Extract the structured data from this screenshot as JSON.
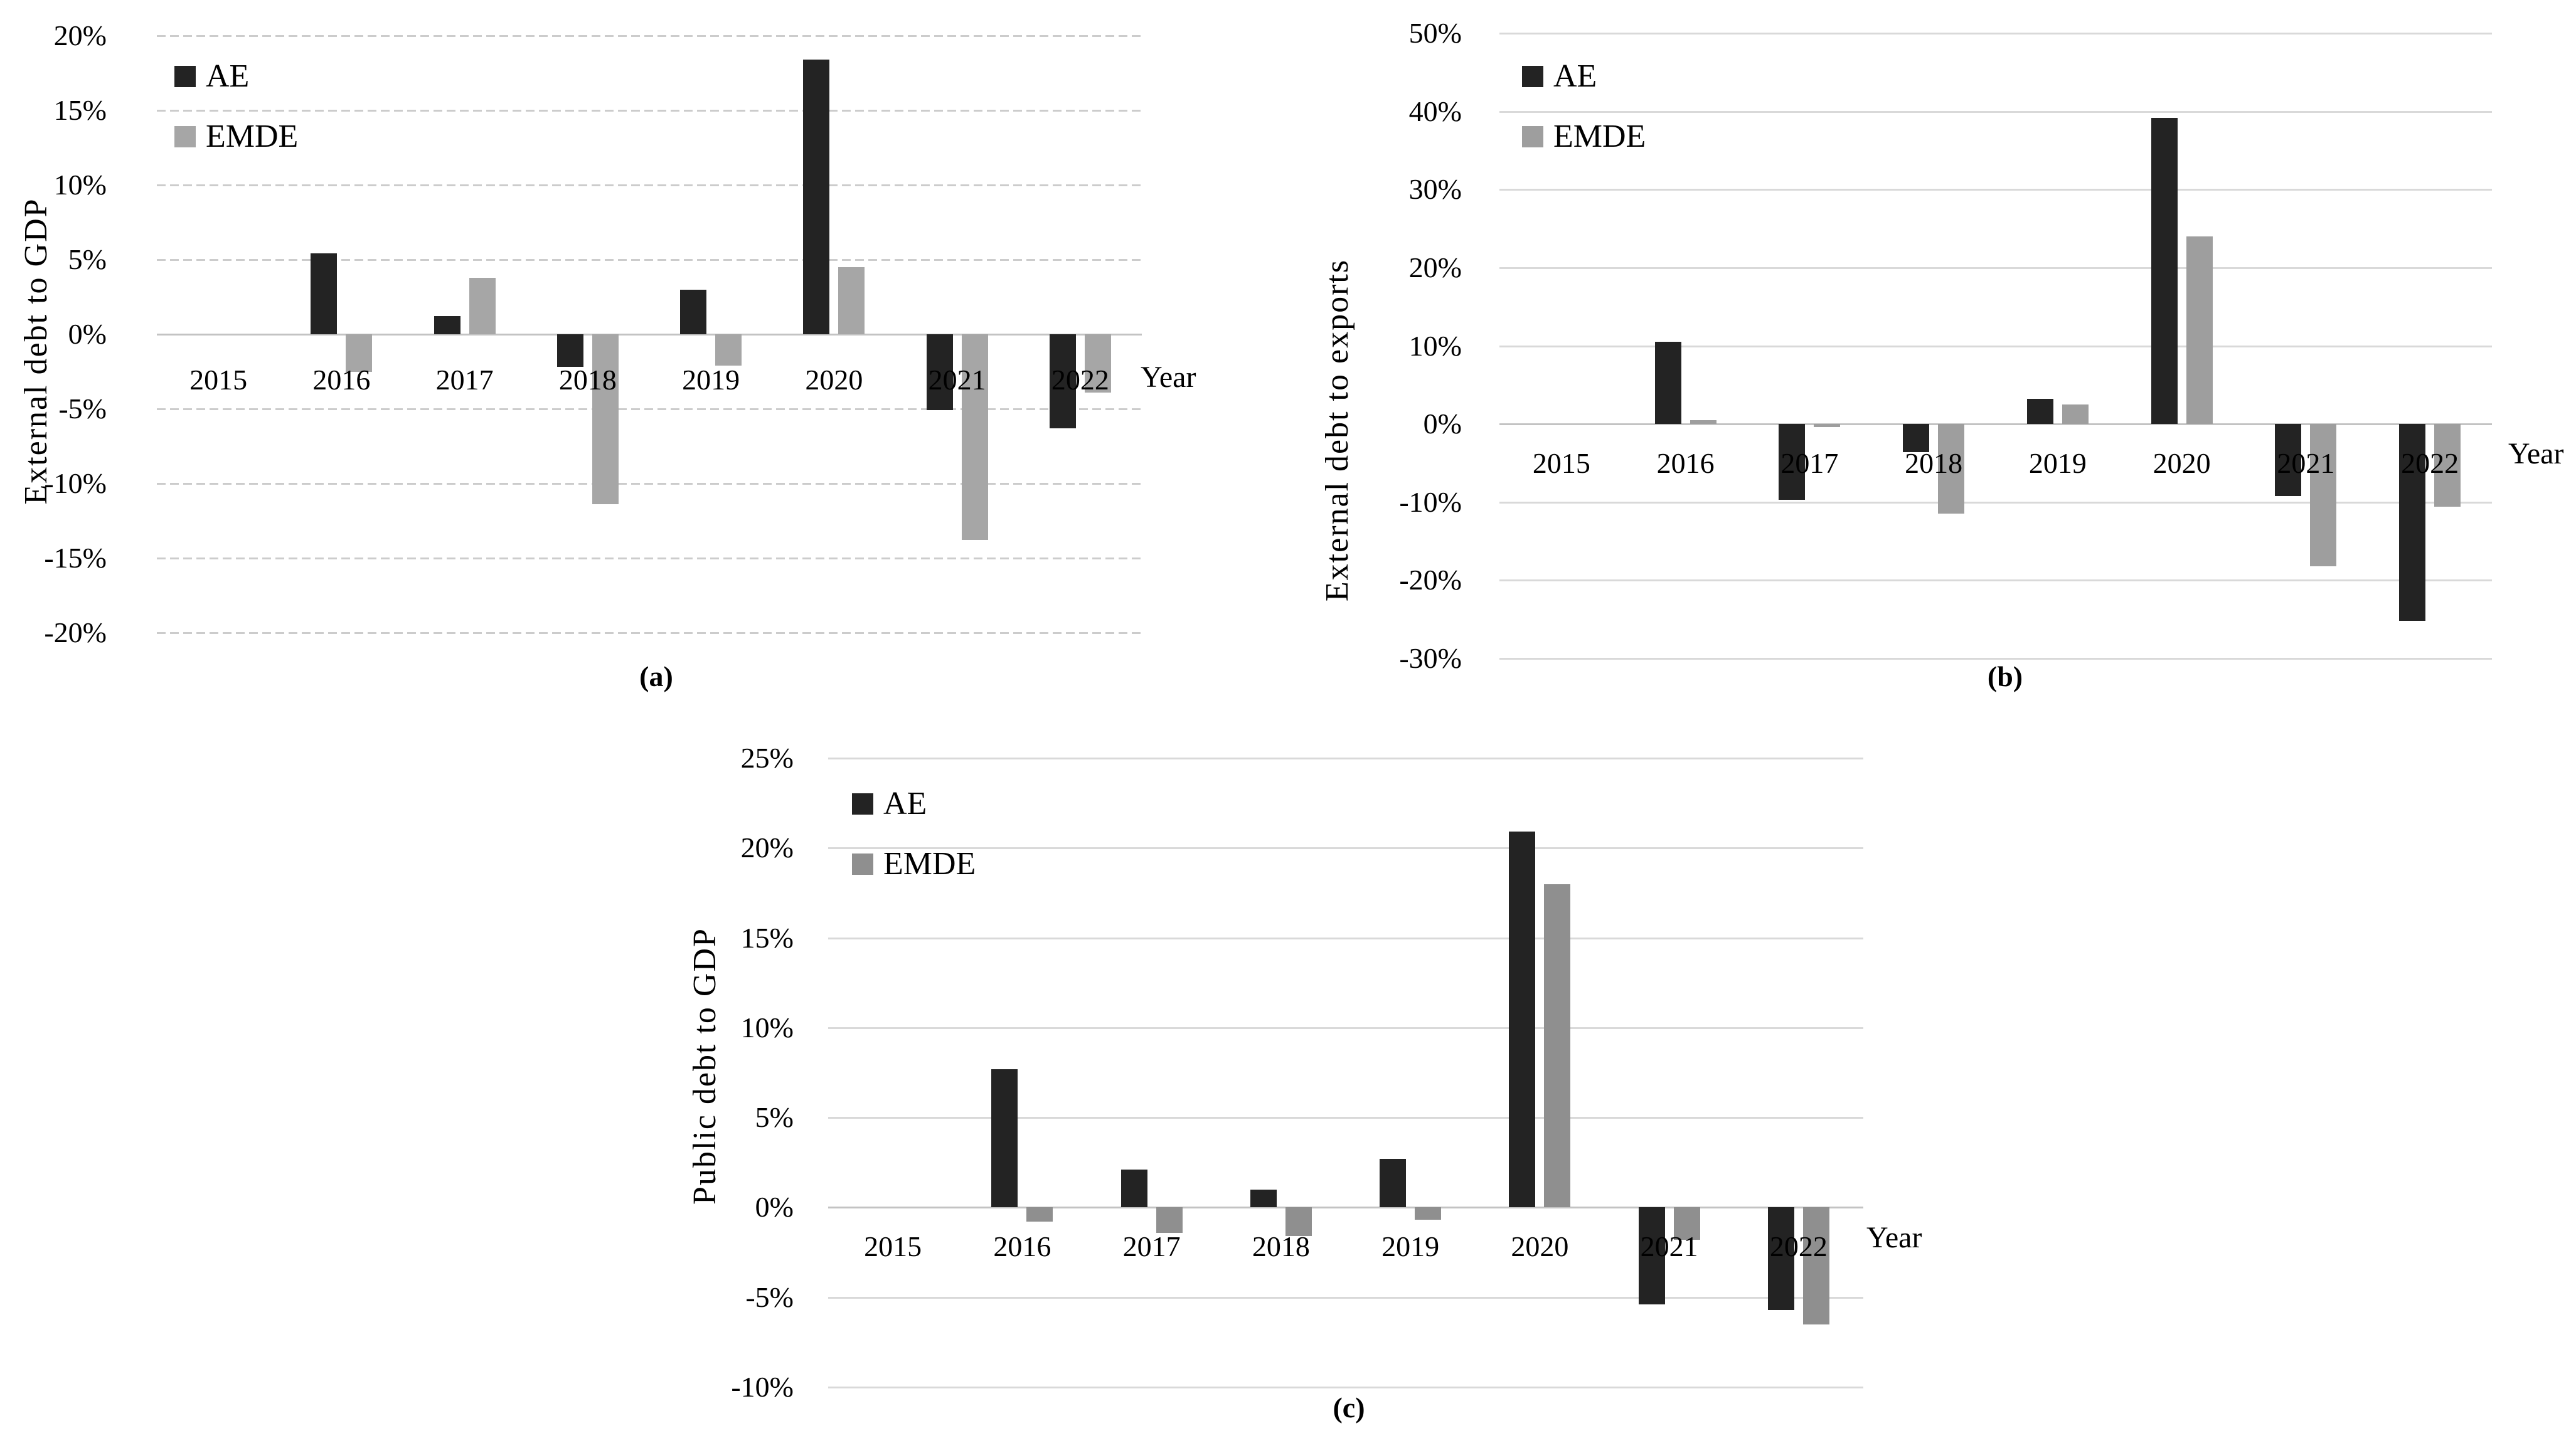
{
  "page": {
    "background": "#ffffff",
    "grid_color": "#d9d9d9"
  },
  "chart_data": [
    {
      "type": "bar",
      "panel": "(a)",
      "ylabel": "External debt to GDP",
      "xlabel": "Year",
      "categories": [
        "2015",
        "2016",
        "2017",
        "2018",
        "2019",
        "2020",
        "2021",
        "2022"
      ],
      "series": [
        {
          "name": "AE",
          "color": "#232323",
          "values": [
            0,
            5.4,
            1.2,
            -2.2,
            3.0,
            18.4,
            -5.1,
            -6.3
          ]
        },
        {
          "name": "EMDE",
          "color": "#a6a6a6",
          "values": [
            0,
            -2.5,
            3.8,
            -11.4,
            -2.1,
            4.5,
            -13.8,
            -3.9
          ]
        }
      ],
      "ylim": [
        -20,
        20
      ],
      "ytick_step": 5,
      "ytick_labels": [
        "20%",
        "15%",
        "10%",
        "5%",
        "0%",
        "-5%",
        "-10%",
        "-15%",
        "-20%"
      ],
      "grid": "dashed",
      "legend_position": "top-left-inside"
    },
    {
      "type": "bar",
      "panel": "(b)",
      "ylabel": "External debt to exports",
      "xlabel": "Year",
      "categories": [
        "2015",
        "2016",
        "2017",
        "2018",
        "2019",
        "2020",
        "2021",
        "2022"
      ],
      "series": [
        {
          "name": "AE",
          "color": "#232323",
          "values": [
            0,
            10.5,
            -9.7,
            -3.6,
            3.2,
            39.2,
            -9.2,
            -25.2
          ]
        },
        {
          "name": "EMDE",
          "color": "#9e9e9e",
          "values": [
            0,
            0.5,
            -0.4,
            -11.5,
            2.5,
            24.0,
            -18.2,
            -10.6
          ]
        }
      ],
      "ylim": [
        -30,
        50
      ],
      "ytick_step": 10,
      "ytick_labels": [
        "50%",
        "40%",
        "30%",
        "20%",
        "10%",
        "0%",
        "-10%",
        "-20%",
        "-30%"
      ],
      "grid": "solid",
      "legend_position": "top-left-inside"
    },
    {
      "type": "bar",
      "panel": "(c)",
      "ylabel": "Public debt to GDP",
      "xlabel": "Year",
      "categories": [
        "2015",
        "2016",
        "2017",
        "2018",
        "2019",
        "2020",
        "2021",
        "2022"
      ],
      "series": [
        {
          "name": "AE",
          "color": "#232323",
          "values": [
            0,
            7.7,
            2.1,
            1.0,
            2.7,
            20.9,
            -5.4,
            -5.7
          ]
        },
        {
          "name": "EMDE",
          "color": "#8f8f8f",
          "values": [
            0,
            -0.8,
            -1.4,
            -1.6,
            -0.7,
            18.0,
            -1.8,
            -6.5
          ]
        }
      ],
      "ylim": [
        -10,
        25
      ],
      "ytick_step": 5,
      "ytick_labels": [
        "25%",
        "20%",
        "15%",
        "10%",
        "5%",
        "0%",
        "-5%",
        "-10%"
      ],
      "grid": "solid",
      "legend_position": "top-left-inside"
    }
  ]
}
